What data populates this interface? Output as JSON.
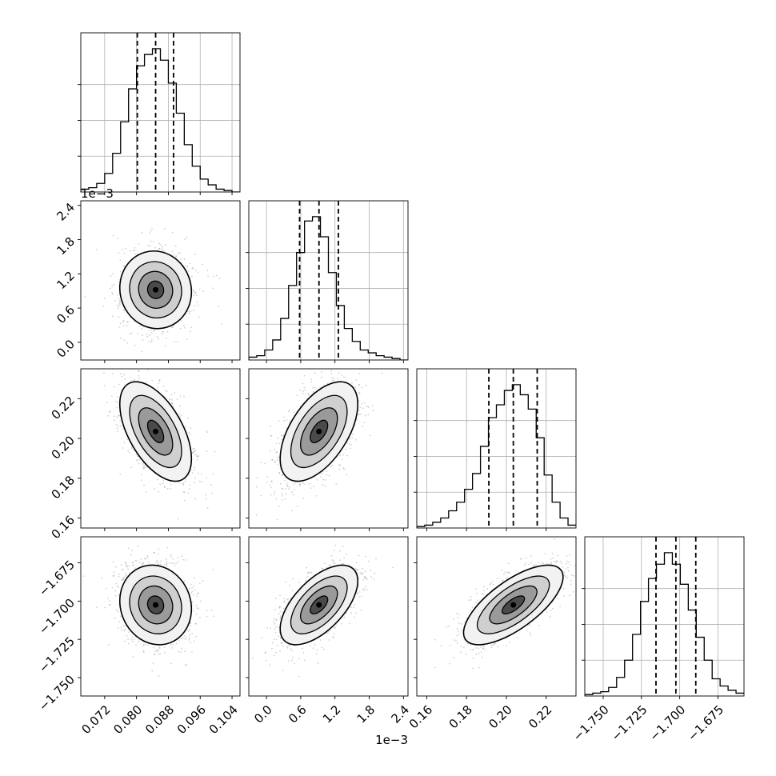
{
  "chart_data": {
    "type": "corner",
    "grid": true,
    "histogram_bins": 20,
    "quantile_lines": "dashed",
    "parameters": [
      {
        "range": [
          0.066,
          0.106
        ],
        "ticks": [
          0.072,
          0.08,
          0.088,
          0.096,
          0.104
        ],
        "tick_labels": [
          "0.072",
          "0.080",
          "0.088",
          "0.096",
          "0.104"
        ],
        "offset_label": "",
        "quantiles": [
          0.0802,
          0.0848,
          0.0893
        ],
        "mean": 0.0848,
        "sd": 0.0045,
        "hist": [
          0.02,
          0.03,
          0.06,
          0.13,
          0.27,
          0.49,
          0.72,
          0.88,
          0.96,
          1.0,
          0.92,
          0.76,
          0.55,
          0.33,
          0.18,
          0.09,
          0.05,
          0.02,
          0.01,
          0.0
        ]
      },
      {
        "range": [
          -0.00031,
          0.00248
        ],
        "ticks": [
          0.0,
          0.0006,
          0.0012,
          0.0018,
          0.0024
        ],
        "tick_labels": [
          "0.0",
          "0.6",
          "1.2",
          "1.8",
          "2.4"
        ],
        "offset_label": "1e−3",
        "quantiles": [
          0.00058,
          0.00092,
          0.00126
        ],
        "mean": 0.00092,
        "sd": 0.00034,
        "hist": [
          0.02,
          0.03,
          0.07,
          0.14,
          0.29,
          0.52,
          0.75,
          0.97,
          1.0,
          0.86,
          0.61,
          0.38,
          0.22,
          0.13,
          0.07,
          0.05,
          0.03,
          0.02,
          0.01,
          0.0
        ]
      },
      {
        "range": [
          0.155,
          0.235
        ],
        "ticks": [
          0.16,
          0.18,
          0.2,
          0.22
        ],
        "tick_labels": [
          "0.16",
          "0.18",
          "0.20",
          "0.22"
        ],
        "offset_label": "",
        "quantiles": [
          0.1912,
          0.2035,
          0.2155
        ],
        "mean": 0.2035,
        "sd": 0.0125,
        "hist": [
          0.01,
          0.02,
          0.04,
          0.07,
          0.12,
          0.18,
          0.27,
          0.38,
          0.57,
          0.77,
          0.86,
          0.96,
          1.0,
          0.93,
          0.83,
          0.63,
          0.37,
          0.18,
          0.07,
          0.02
        ]
      },
      {
        "range": [
          -1.762,
          -1.658
        ],
        "ticks": [
          -1.75,
          -1.725,
          -1.7,
          -1.675
        ],
        "tick_labels": [
          "−1.750",
          "−1.725",
          "−1.700",
          "−1.675"
        ],
        "offset_label": "",
        "quantiles": [
          -1.7155,
          -1.7025,
          -1.6895
        ],
        "mean": -1.7025,
        "sd": 0.013,
        "hist": [
          0.01,
          0.02,
          0.03,
          0.06,
          0.13,
          0.25,
          0.43,
          0.66,
          0.82,
          0.92,
          1.0,
          0.92,
          0.78,
          0.6,
          0.41,
          0.25,
          0.12,
          0.07,
          0.04,
          0.02
        ]
      }
    ],
    "correlations": {
      "1,0": -0.05,
      "2,0": -0.55,
      "2,1": 0.55,
      "3,0": -0.1,
      "3,1": 0.6,
      "3,2": 0.7
    }
  }
}
